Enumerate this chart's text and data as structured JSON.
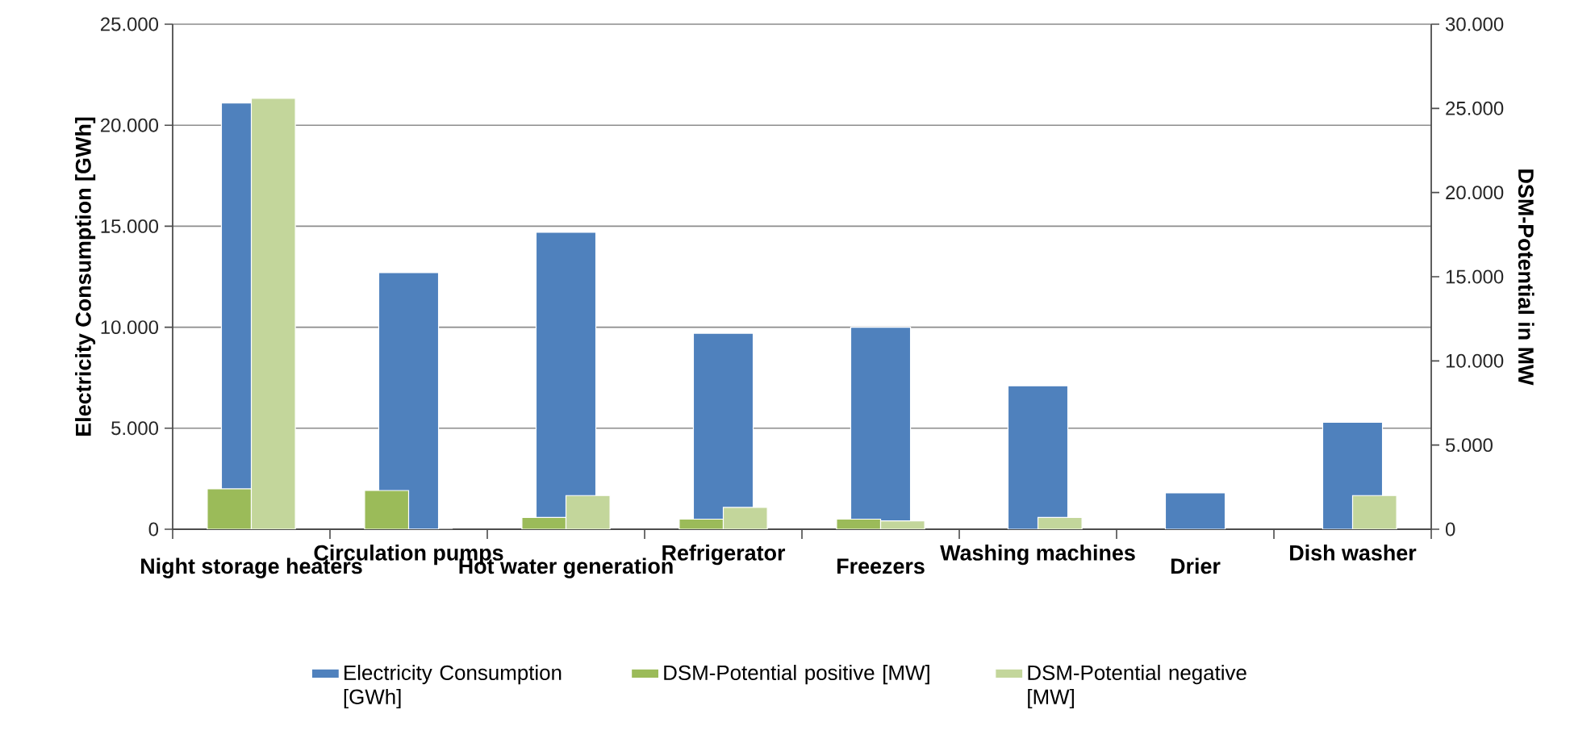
{
  "chart_data": {
    "type": "bar",
    "categories": [
      "Night storage heaters",
      "Circulation pumps",
      "Hot water generation",
      "Refrigerator",
      "Freezers",
      "Washing machines",
      "Drier",
      "Dish washer"
    ],
    "series": [
      {
        "name": "Electricity Consumption [GWh]",
        "color": "#4f81bd",
        "values": [
          21100,
          12700,
          14700,
          9700,
          10000,
          7100,
          1800,
          5300
        ]
      },
      {
        "name": "DSM-Potential positive [MW]",
        "color": "#9bbb59",
        "axis": "y2",
        "values": [
          2400,
          2300,
          700,
          600,
          600,
          null,
          null,
          null
        ]
      },
      {
        "name": "DSM-Potential negative [MW]",
        "color": "#c3d69b",
        "axis": "y2",
        "values": [
          25600,
          0,
          2000,
          1300,
          500,
          700,
          null,
          2000
        ]
      }
    ],
    "ylabel": "Electricity Consumption [GWh]",
    "y2label": "DSM-Potential in MW",
    "ylim": [
      0,
      25000
    ],
    "yticks": [
      0,
      {
        "value": 5000,
        "label": "5.000"
      },
      {
        "value": 10000,
        "label": "10.000"
      },
      {
        "value": 15000,
        "label": "15.000"
      },
      {
        "value": 20000,
        "label": "20.000"
      },
      {
        "value": 25000,
        "label": "25.000"
      }
    ],
    "y2lim": [
      0,
      30000
    ],
    "y2ticks": [
      0,
      {
        "value": 5000,
        "label": "5.000"
      },
      {
        "value": 10000,
        "label": "10.000"
      },
      {
        "value": 15000,
        "label": "15.000"
      },
      {
        "value": 20000,
        "label": "20.000"
      },
      {
        "value": 25000,
        "label": "25.000"
      },
      {
        "value": 30000,
        "label": "30.000"
      }
    ],
    "grid": "y",
    "legend": "bottom"
  }
}
